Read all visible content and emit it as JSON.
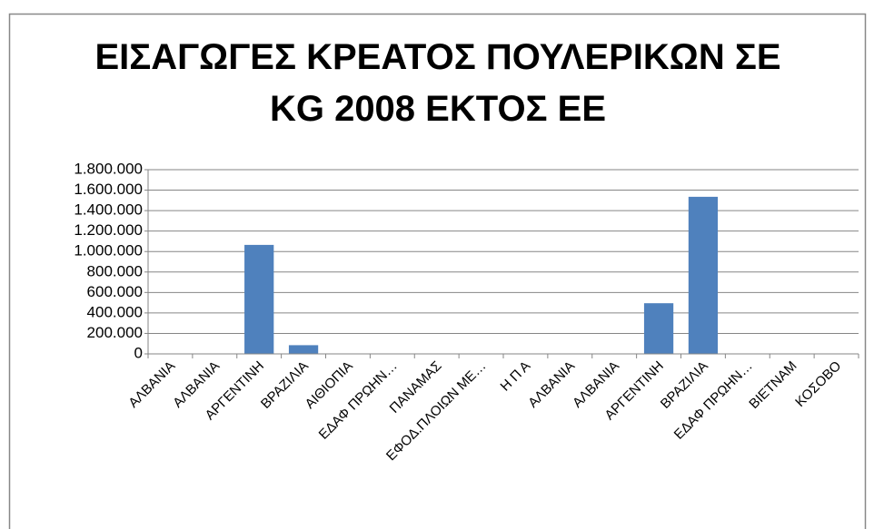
{
  "chart_data": {
    "type": "bar",
    "title": [
      "ΕΙΣΑΓΩΓΕΣ ΚΡΕΑΤΟΣ ΠΟΥΛΕΡΙΚΩΝ ΣΕ",
      "KG 2008  ΕΚΤΟΣ ΕΕ"
    ],
    "categories": [
      "ΑΛΒΑΝΙΑ",
      "ΑΛΒΑΝΙΑ",
      "ΑΡΓΕΝΤΙΝΗ",
      "ΒΡΑΖΙΛΙΑ",
      "ΑΙΘΙΟΠΙΑ",
      "ΕΔΑΦ ΠΡΩΗΝ…",
      "ΠΑΝΑΜΑΣ",
      "ΕΦΟΔ.ΠΛΟΙΩΝ ΜΕ…",
      "Η Π Α",
      "ΑΛΒΑΝΙΑ",
      "ΑΛΒΑΝΙΑ",
      "ΑΡΓΕΝΤΙΝΗ",
      "ΒΡΑΖΙΛΙΑ",
      "ΕΔΑΦ ΠΡΩΗΝ…",
      "ΒΙΕΤΝΑΜ",
      "ΚΟΣΟΒΟ"
    ],
    "values": [
      0,
      0,
      1065000,
      85000,
      0,
      0,
      0,
      0,
      0,
      0,
      0,
      495000,
      1535000,
      0,
      0,
      0
    ],
    "color": "#4f81bd",
    "ylim": [
      0,
      1800000
    ],
    "yticks": [
      0,
      {
        "value": 200000,
        "label": "200.000"
      },
      {
        "value": 400000,
        "label": "400.000"
      },
      {
        "value": 600000,
        "label": "600.000"
      },
      {
        "value": 800000,
        "label": "800.000"
      },
      {
        "value": 1000000,
        "label": "1.000.000"
      },
      {
        "value": 1200000,
        "label": "1.200.000"
      },
      {
        "value": 1400000,
        "label": "1.400.000"
      },
      {
        "value": 1600000,
        "label": "1.600.000"
      },
      {
        "value": 1800000,
        "label": "1.800.000"
      }
    ],
    "grid": true
  }
}
